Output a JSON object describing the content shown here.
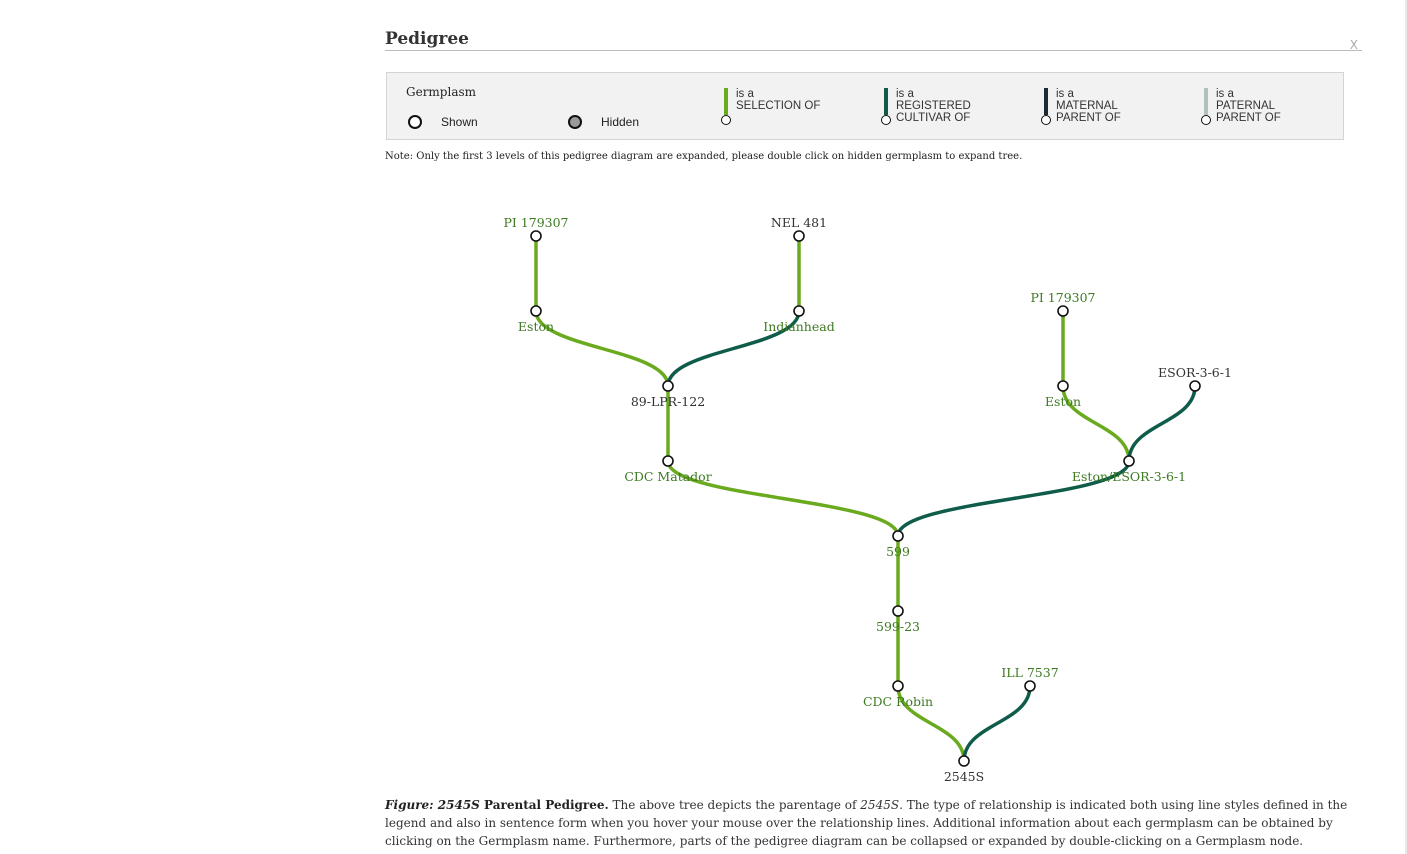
{
  "header": {
    "title": "Pedigree",
    "close_label": "X"
  },
  "legend": {
    "heading": "Germplasm",
    "shown_label": "Shown",
    "hidden_label": "Hidden",
    "relationships": [
      {
        "line1": "is a",
        "line2": "SELECTION OF",
        "line3": "",
        "color": "#6aaa1e"
      },
      {
        "line1": "is a",
        "line2": "REGISTERED",
        "line3": "CULTIVAR OF",
        "color": "#0f5c4a"
      },
      {
        "line1": "is a",
        "line2": "MATERNAL",
        "line3": "PARENT OF",
        "color": "#1e2a36"
      },
      {
        "line1": "is a",
        "line2": "PATERNAL",
        "line3": "PARENT OF",
        "color": "#b3c2b8"
      }
    ]
  },
  "note": "Note: Only the first 3 levels of this pedigree diagram are expanded, please double click on hidden germplasm to expand tree.",
  "colors": {
    "selection": "#6aaa1e",
    "registered": "#0f5c4a",
    "maternal": "#1e2a36",
    "paternal": "#b3c2b8",
    "label_green": "#3d7a22",
    "label_dark": "#333333"
  },
  "tree": {
    "nodes": [
      {
        "id": "pi179307a",
        "label": "PI 179307",
        "label_color": "green"
      },
      {
        "id": "nel481",
        "label": "NEL 481",
        "label_color": "dark"
      },
      {
        "id": "estona",
        "label": "Eston",
        "label_color": "green"
      },
      {
        "id": "indianhead",
        "label": "Indianhead",
        "label_color": "green"
      },
      {
        "id": "lpr122",
        "label": "89-LPR-122",
        "label_color": "dark"
      },
      {
        "id": "matador",
        "label": "CDC Matador",
        "label_color": "green"
      },
      {
        "id": "pi179307b",
        "label": "PI 179307",
        "label_color": "green"
      },
      {
        "id": "esor",
        "label": "ESOR-3-6-1",
        "label_color": "dark"
      },
      {
        "id": "estonb",
        "label": "Eston",
        "label_color": "green"
      },
      {
        "id": "estonesor",
        "label": "Eston/ESOR-3-6-1",
        "label_color": "green"
      },
      {
        "id": "n599",
        "label": "599",
        "label_color": "green"
      },
      {
        "id": "n59923",
        "label": "599-23",
        "label_color": "green"
      },
      {
        "id": "ill7537",
        "label": "ILL 7537",
        "label_color": "green"
      },
      {
        "id": "robin",
        "label": "CDC Robin",
        "label_color": "green"
      },
      {
        "id": "n2545s",
        "label": "2545S",
        "label_color": "dark"
      }
    ],
    "links": [
      {
        "from": "pi179307a",
        "to": "estona",
        "type": "selection"
      },
      {
        "from": "nel481",
        "to": "indianhead",
        "type": "selection"
      },
      {
        "from": "estona",
        "to": "lpr122",
        "type": "selection"
      },
      {
        "from": "indianhead",
        "to": "lpr122",
        "type": "registered"
      },
      {
        "from": "lpr122",
        "to": "matador",
        "type": "selection"
      },
      {
        "from": "pi179307b",
        "to": "estonb",
        "type": "selection"
      },
      {
        "from": "estonb",
        "to": "estonesor",
        "type": "selection"
      },
      {
        "from": "esor",
        "to": "estonesor",
        "type": "registered"
      },
      {
        "from": "matador",
        "to": "n599",
        "type": "selection"
      },
      {
        "from": "estonesor",
        "to": "n599",
        "type": "registered"
      },
      {
        "from": "n599",
        "to": "n59923",
        "type": "selection"
      },
      {
        "from": "n59923",
        "to": "robin",
        "type": "selection"
      },
      {
        "from": "robin",
        "to": "n2545s",
        "type": "selection"
      },
      {
        "from": "ill7537",
        "to": "n2545s",
        "type": "registered"
      }
    ]
  },
  "caption": {
    "figure_label": "Figure:",
    "germplasm_name": "2545S",
    "title_rest": "Parental Pedigree.",
    "text1": "The above tree depicts the parentage of",
    "text2": ". The type of relationship is indicated both using line styles defined in the legend and also in sentence form when you hover your mouse over the relationship lines. Additional information about each germplasm can be obtained by clicking on the Germplasm name. Furthermore, parts of the pedigree diagram can be collapsed or expanded by double-clicking on a Germplasm node."
  }
}
